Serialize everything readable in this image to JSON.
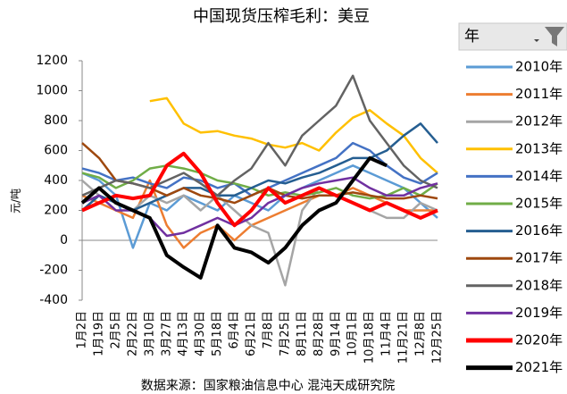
{
  "chart_data": {
    "type": "line",
    "title": "中国现货压榨毛利：美豆",
    "y_label": "元/吨",
    "source": "数据来源：国家粮油信息中心 混沌天成研究院",
    "legend_title": "年",
    "legend_position": "right",
    "categories": [
      "1月2日",
      "1月19日",
      "2月5日",
      "2月22日",
      "3月10日",
      "3月27日",
      "4月13日",
      "4月30日",
      "5月18日",
      "6月4日",
      "6月21日",
      "7月8日",
      "7月25日",
      "8月11日",
      "8月28日",
      "9月14日",
      "10月1日",
      "10月18日",
      "11月4日",
      "11月21日",
      "12月8日",
      "12月25日"
    ],
    "ylim": [
      -400,
      1200
    ],
    "yticks": [
      -400,
      -200,
      0,
      200,
      400,
      600,
      800,
      1000,
      1200
    ],
    "series": [
      {
        "name": "2010年",
        "color": "#5b9bd5",
        "values": [
          450,
          400,
          300,
          -50,
          250,
          200,
          300,
          250,
          200,
          300,
          250,
          200,
          300,
          350,
          400,
          450,
          500,
          450,
          400,
          350,
          250,
          150
        ]
      },
      {
        "name": "2011年",
        "color": "#ed7d31",
        "values": [
          300,
          250,
          200,
          150,
          400,
          100,
          -50,
          50,
          100,
          0,
          100,
          150,
          200,
          250,
          300,
          300,
          350,
          300,
          250,
          200,
          200,
          200
        ]
      },
      {
        "name": "2012年",
        "color": "#a5a5a5",
        "values": [
          400,
          300,
          250,
          200,
          300,
          250,
          300,
          200,
          300,
          200,
          100,
          50,
          -300,
          200,
          350,
          300,
          250,
          200,
          150,
          150,
          250,
          200
        ]
      },
      {
        "name": "2013年",
        "color": "#ffc000",
        "values": [
          null,
          null,
          null,
          null,
          930,
          950,
          780,
          720,
          730,
          700,
          680,
          640,
          620,
          650,
          600,
          720,
          820,
          870,
          780,
          700,
          550,
          450
        ]
      },
      {
        "name": "2014年",
        "color": "#4472c4",
        "values": [
          480,
          450,
          400,
          420,
          380,
          350,
          420,
          400,
          350,
          380,
          300,
          350,
          400,
          450,
          500,
          550,
          650,
          600,
          500,
          420,
          380,
          450
        ]
      },
      {
        "name": "2015年",
        "color": "#70ad47",
        "values": [
          450,
          420,
          350,
          400,
          480,
          500,
          480,
          450,
          400,
          380,
          350,
          300,
          320,
          300,
          320,
          350,
          300,
          280,
          300,
          350,
          300,
          380
        ]
      },
      {
        "name": "2016年",
        "color": "#255e91",
        "values": [
          200,
          300,
          250,
          200,
          250,
          300,
          350,
          350,
          300,
          300,
          350,
          400,
          380,
          420,
          450,
          500,
          550,
          550,
          600,
          700,
          780,
          650
        ]
      },
      {
        "name": "2017年",
        "color": "#9e480e",
        "values": [
          650,
          550,
          400,
          380,
          350,
          300,
          350,
          300,
          280,
          250,
          300,
          350,
          300,
          280,
          300,
          300,
          320,
          300,
          280,
          280,
          300,
          280
        ]
      },
      {
        "name": "2018年",
        "color": "#636363",
        "values": [
          300,
          350,
          400,
          380,
          350,
          400,
          450,
          380,
          300,
          400,
          480,
          650,
          500,
          700,
          800,
          900,
          1100,
          800,
          650,
          500,
          400,
          350
        ]
      },
      {
        "name": "2019年",
        "color": "#7030a0",
        "values": [
          250,
          300,
          200,
          200,
          150,
          30,
          50,
          100,
          150,
          100,
          150,
          250,
          300,
          350,
          380,
          400,
          420,
          350,
          300,
          300,
          350,
          380
        ]
      },
      {
        "name": "2020年",
        "color": "#ff0000",
        "values": [
          200,
          250,
          300,
          280,
          300,
          500,
          580,
          450,
          250,
          100,
          200,
          350,
          250,
          300,
          350,
          300,
          250,
          200,
          250,
          200,
          150,
          200
        ]
      },
      {
        "name": "2021年",
        "color": "#000000",
        "values": [
          250,
          350,
          250,
          200,
          150,
          -100,
          -180,
          -250,
          100,
          -50,
          -80,
          -150,
          -50,
          100,
          200,
          250,
          400,
          550,
          500,
          null,
          null,
          null
        ]
      }
    ]
  }
}
